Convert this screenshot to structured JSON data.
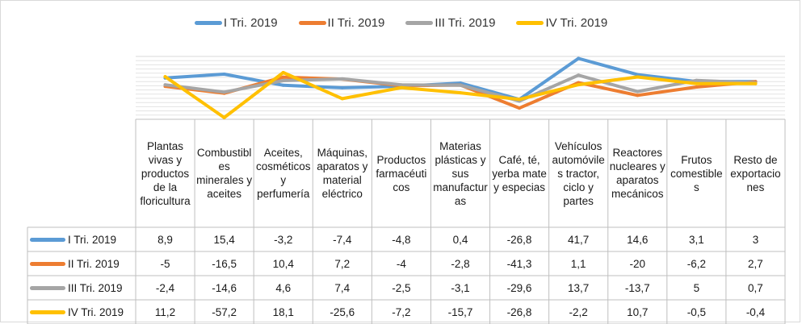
{
  "chart_data": {
    "type": "line",
    "title": "",
    "xlabel": "",
    "ylabel": "",
    "ylim": [
      -60,
      45
    ],
    "grid": true,
    "legend_position": "top",
    "categories": [
      "Plantas vivas y productos de la floricultura",
      "Combustibles minerales y aceites",
      "Aceites, cosméticos y perfumería",
      "Máquinas, aparatos y material eléctrico",
      "Productos farmacéuticos",
      "Materias plásticas y sus manufacturas",
      "Café, té, yerba mate y especias",
      "Vehículos automóviles tractor, ciclo y partes",
      "Reactores nucleares y aparatos mecánicos",
      "Frutos comestibles",
      "Resto de exportaciones"
    ],
    "series": [
      {
        "name": "I Tri. 2019",
        "color": "#5B9BD5",
        "values": [
          8.9,
          15.4,
          -3.2,
          -7.4,
          -4.8,
          0.4,
          -26.8,
          41.7,
          14.6,
          3.1,
          3
        ],
        "labels": [
          "8,9",
          "15,4",
          "-3,2",
          "-7,4",
          "-4,8",
          "0,4",
          "-26,8",
          "41,7",
          "14,6",
          "3,1",
          "3"
        ]
      },
      {
        "name": "II Tri. 2019",
        "color": "#ED7D31",
        "values": [
          -5,
          -16.5,
          10.4,
          7.2,
          -4,
          -2.8,
          -41.3,
          1.1,
          -20,
          -6.2,
          2.7
        ],
        "labels": [
          "-5",
          "-16,5",
          "10,4",
          "7,2",
          "-4",
          "-2,8",
          "-41,3",
          "1,1",
          "-20",
          "-6,2",
          "2,7"
        ]
      },
      {
        "name": "III Tri. 2019",
        "color": "#A5A5A5",
        "values": [
          -2.4,
          -14.6,
          4.6,
          7.4,
          -2.5,
          -3.1,
          -29.6,
          13.7,
          -13.7,
          5,
          0.7
        ],
        "labels": [
          "-2,4",
          "-14,6",
          "4,6",
          "7,4",
          "-2,5",
          "-3,1",
          "-29,6",
          "13,7",
          "-13,7",
          "5",
          "0,7"
        ]
      },
      {
        "name": "IV Tri. 2019",
        "color": "#FFC000",
        "values": [
          11.2,
          -57.2,
          18.1,
          -25.6,
          -7.2,
          -15.7,
          -26.8,
          -2.2,
          10.7,
          -0.5,
          -0.4
        ],
        "labels": [
          "11,2",
          "-57,2",
          "18,1",
          "-25,6",
          "-7,2",
          "-15,7",
          "-26,8",
          "-2,2",
          "10,7",
          "-0,5",
          "-0,4"
        ]
      }
    ]
  },
  "table": {
    "category_labels": [
      "Plantas vivas y productos de la floricultura",
      "Combustibles minerales y aceites",
      "Aceites, cosméticos y perfumería",
      "Máquinas, aparatos y material eléctrico",
      "Productos farmacéuticos",
      "Materias plásticas y sus manufacturas",
      "Café, té, yerba mate y especias",
      "Vehículos automóviles tractor, ciclo y partes",
      "Reactores nucleares y aparatos mecánicos",
      "Frutos comestibles",
      "Resto de exportaciones"
    ]
  }
}
